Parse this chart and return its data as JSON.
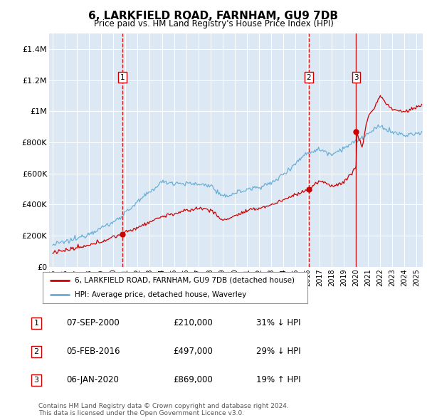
{
  "title": "6, LARKFIELD ROAD, FARNHAM, GU9 7DB",
  "subtitle": "Price paid vs. HM Land Registry's House Price Index (HPI)",
  "plot_bg_color": "#dce9f5",
  "hpi_color": "#6aaed6",
  "price_color": "#cc0000",
  "vline_color": "#cc0000",
  "ylim": [
    0,
    1500000
  ],
  "yticks": [
    0,
    200000,
    400000,
    600000,
    800000,
    1000000,
    1200000,
    1400000
  ],
  "ytick_labels": [
    "£0",
    "£200K",
    "£400K",
    "£600K",
    "£800K",
    "£1M",
    "£1.2M",
    "£1.4M"
  ],
  "purchases": [
    {
      "date_num": 2000.75,
      "price": 210000,
      "label": "1",
      "vline_style": "--"
    },
    {
      "date_num": 2016.09,
      "price": 497000,
      "label": "2",
      "vline_style": "--"
    },
    {
      "date_num": 2020.01,
      "price": 869000,
      "label": "3",
      "vline_style": "-"
    }
  ],
  "table_rows": [
    {
      "num": "1",
      "date": "07-SEP-2000",
      "price": "£210,000",
      "pct": "31% ↓ HPI"
    },
    {
      "num": "2",
      "date": "05-FEB-2016",
      "price": "£497,000",
      "pct": "29% ↓ HPI"
    },
    {
      "num": "3",
      "date": "06-JAN-2020",
      "price": "£869,000",
      "pct": "19% ↑ HPI"
    }
  ],
  "legend1": "6, LARKFIELD ROAD, FARNHAM, GU9 7DB (detached house)",
  "legend2": "HPI: Average price, detached house, Waverley",
  "footnote": "Contains HM Land Registry data © Crown copyright and database right 2024.\nThis data is licensed under the Open Government Licence v3.0.",
  "xlim_start": 1994.7,
  "xlim_end": 2025.5
}
